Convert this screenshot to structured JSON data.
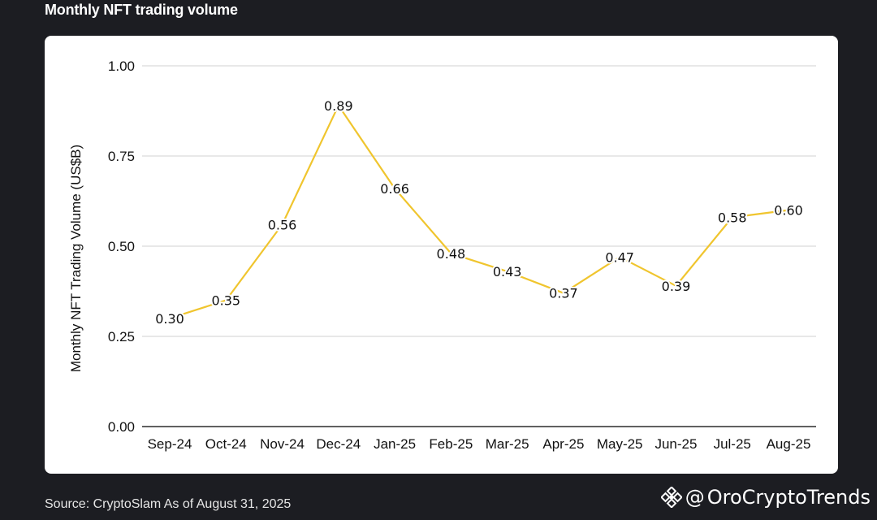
{
  "header": {
    "title": "Monthly NFT trading volume"
  },
  "footer": {
    "source": "Source: CryptoSlam  As of August 31, 2025",
    "brand_at": "@",
    "brand_name": "OroCryptoTrends"
  },
  "colors": {
    "background": "#1c1d22",
    "card": "#ffffff",
    "line": "#f0c52e",
    "grid": "#d0d0d0",
    "axis": "#000000"
  },
  "icons": {
    "brand_logo": "binance-diamond-icon"
  },
  "chart_data": {
    "type": "line",
    "title": "",
    "xlabel": "",
    "ylabel": "Monthly NFT Trading Volume (US$B)",
    "categories": [
      "Sep-24",
      "Oct-24",
      "Nov-24",
      "Dec-24",
      "Jan-25",
      "Feb-25",
      "Mar-25",
      "Apr-25",
      "May-25",
      "Jun-25",
      "Jul-25",
      "Aug-25"
    ],
    "series": [
      {
        "values": [
          0.3,
          0.35,
          0.56,
          0.89,
          0.66,
          0.48,
          0.43,
          0.37,
          0.47,
          0.39,
          0.58,
          0.6
        ],
        "labels": [
          "0.30",
          "0.35",
          "0.56",
          "0.89",
          "0.66",
          "0.48",
          "0.43",
          "0.37",
          "0.47",
          "0.39",
          "0.58",
          "0.60"
        ]
      }
    ],
    "ylim": [
      0,
      1.0
    ],
    "yticks": [
      0.0,
      0.25,
      0.5,
      0.75,
      1.0
    ],
    "ytick_labels": [
      "0.00",
      "0.25",
      "0.50",
      "0.75",
      "1.00"
    ],
    "grid": true,
    "legend": "none"
  }
}
